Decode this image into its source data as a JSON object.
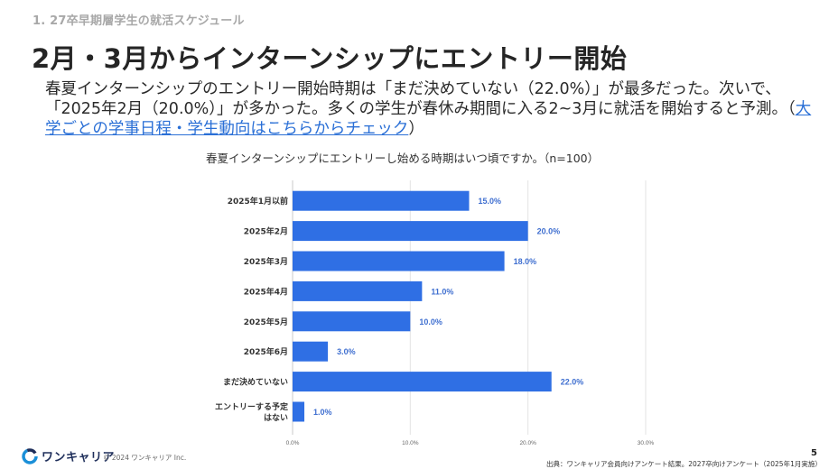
{
  "header": {
    "section_label": "1. 27卒早期層学生の就活スケジュール",
    "title": "2月・3月からインターンシップにエントリー開始"
  },
  "lead": {
    "text": "春夏インターンシップのエントリー開始時期は「まだ決めていない（22.0%）」が最多だった。次いで、「2025年2月（20.0%）」が多かった。多くの学生が春休み期間に入る2~3月に就活を開始すると予測。（",
    "link_text": "大学ごとの学事日程・学生動向はこちらからチェック",
    "text_after": "）"
  },
  "chart_data": {
    "type": "bar",
    "orientation": "horizontal",
    "title": "春夏インターンシップにエントリーし始める時期はいつ頃ですか。（n=100）",
    "categories": [
      "2025年1月以前",
      "2025年2月",
      "2025年3月",
      "2025年4月",
      "2025年5月",
      "2025年6月",
      "まだ決めていない",
      "エントリーする予定はない"
    ],
    "category_lines": [
      [
        "2025年1月以前"
      ],
      [
        "2025年2月"
      ],
      [
        "2025年3月"
      ],
      [
        "2025年4月"
      ],
      [
        "2025年5月"
      ],
      [
        "2025年6月"
      ],
      [
        "まだ決めていない"
      ],
      [
        "エントリーする予定",
        "はない"
      ]
    ],
    "values": [
      15.0,
      20.0,
      18.0,
      11.0,
      10.0,
      3.0,
      22.0,
      1.0
    ],
    "value_labels": [
      "15.0%",
      "20.0%",
      "18.0%",
      "11.0%",
      "10.0%",
      "3.0%",
      "22.0%",
      "1.0%"
    ],
    "xlim": [
      0,
      30
    ],
    "xticks": [
      0,
      10,
      20,
      30
    ],
    "xtick_labels": [
      "0.0%",
      "10.0%",
      "20.0%",
      "30.0%"
    ],
    "xlabel": "",
    "ylabel": "",
    "grid": true,
    "legend": "none",
    "bar_color": "#2f6fe4",
    "label_color": "#3f6fd0"
  },
  "footer": {
    "brand": "ワンキャリア",
    "copyright": "© 2024 ワンキャリア Inc.",
    "source": "出典：ワンキャリア会員向けアンケート結果。2027卒向けアンケート（2025年1月実施）",
    "page_number": "5"
  }
}
